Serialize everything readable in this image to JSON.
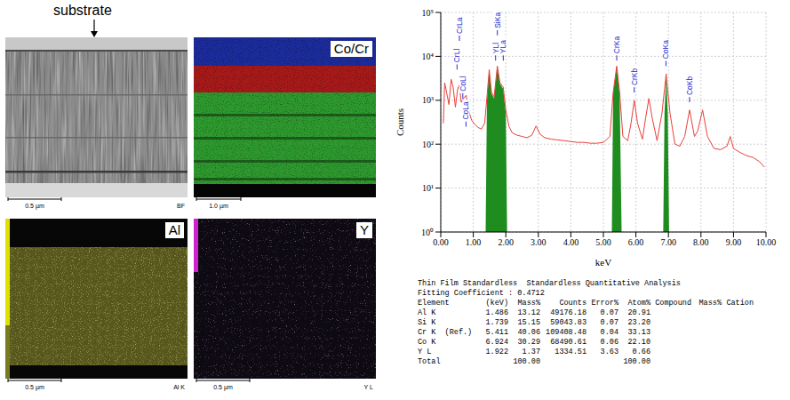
{
  "images": [
    {
      "annotation": "substrate",
      "scale_bar": "0.5 µm",
      "caption": "BF"
    },
    {
      "label": "Co/Cr",
      "scale_bar": "1.0 µm"
    },
    {
      "label": "Al",
      "scale_bar": "0.5 µm",
      "caption": "Al K"
    },
    {
      "label": "Y",
      "scale_bar": "0.5 µm",
      "caption": "Y L"
    }
  ],
  "chart_data": {
    "type": "line",
    "x_label": "keV",
    "y_label": "Counts",
    "log": "y",
    "grid": true,
    "xlim": [
      0,
      10
    ],
    "xticks": [
      {
        "value": 0,
        "label": "0.00"
      },
      {
        "value": 1,
        "label": "1.00"
      },
      {
        "value": 2,
        "label": "2.00"
      },
      {
        "value": 3,
        "label": "3.00"
      },
      {
        "value": 4,
        "label": "4.00"
      },
      {
        "value": 5,
        "label": "5.00"
      },
      {
        "value": 6,
        "label": "6.00"
      },
      {
        "value": 7,
        "label": "7.00"
      },
      {
        "value": 8,
        "label": "8.00"
      },
      {
        "value": 9,
        "label": "9.00"
      },
      {
        "value": 10,
        "label": "10.00"
      }
    ],
    "ylim": [
      1,
      100000
    ],
    "yticks": [
      {
        "value": 1,
        "label": "10⁰"
      },
      {
        "value": 10,
        "label": "10¹"
      },
      {
        "value": 100,
        "label": "10²"
      },
      {
        "value": 1000,
        "label": "10³"
      },
      {
        "value": 10000,
        "label": "10⁴"
      },
      {
        "value": 100000,
        "label": "10⁵"
      }
    ],
    "x": [
      0.08,
      0.12,
      0.18,
      0.25,
      0.32,
      0.38,
      0.45,
      0.52,
      0.57,
      0.63,
      0.7,
      0.78,
      0.85,
      0.95,
      1.05,
      1.15,
      1.25,
      1.35,
      1.42,
      1.49,
      1.56,
      1.64,
      1.74,
      1.82,
      1.92,
      2.0,
      2.1,
      2.2,
      2.35,
      2.5,
      2.65,
      2.8,
      2.93,
      3.05,
      3.2,
      3.4,
      3.6,
      3.8,
      4.0,
      4.2,
      4.4,
      4.6,
      4.8,
      5.0,
      5.2,
      5.3,
      5.41,
      5.5,
      5.6,
      5.75,
      5.85,
      5.95,
      6.05,
      6.2,
      6.3,
      6.4,
      6.5,
      6.65,
      6.8,
      6.93,
      7.05,
      7.2,
      7.35,
      7.5,
      7.65,
      7.8,
      7.9,
      8.05,
      8.2,
      8.4,
      8.6,
      8.8,
      8.9,
      9.0,
      9.2,
      9.4,
      9.6,
      9.8,
      9.95
    ],
    "series": [
      {
        "type": "line",
        "color": "#e8403a",
        "values": [
          300,
          2500,
          1500,
          800,
          3000,
          2000,
          700,
          1800,
          2200,
          900,
          1100,
          1300,
          600,
          350,
          280,
          240,
          220,
          300,
          1200,
          5000,
          1500,
          1200,
          6000,
          2500,
          2000,
          600,
          250,
          180,
          160,
          150,
          140,
          160,
          260,
          170,
          140,
          130,
          125,
          120,
          115,
          110,
          110,
          105,
          105,
          110,
          150,
          1500,
          6000,
          1500,
          150,
          120,
          300,
          1000,
          300,
          130,
          400,
          1100,
          400,
          120,
          500,
          4000,
          500,
          100,
          90,
          150,
          600,
          150,
          200,
          600,
          150,
          80,
          75,
          90,
          150,
          80,
          65,
          55,
          50,
          40,
          30
        ]
      },
      {
        "type": "area",
        "color": "#1e8c1e",
        "x": [
          1.38,
          1.42,
          1.49,
          1.56,
          1.64,
          1.74,
          1.82,
          1.92,
          2.0,
          2.04,
          5.26,
          5.3,
          5.41,
          5.5,
          5.56,
          6.84,
          6.88,
          6.93,
          6.98,
          7.02
        ],
        "values": [
          1,
          1000,
          4800,
          1400,
          1100,
          5800,
          2400,
          1800,
          500,
          1,
          1,
          1400,
          5800,
          1400,
          1,
          1,
          500,
          3800,
          500,
          1
        ]
      }
    ],
    "annotations": [
      {
        "text": "CrLl",
        "x": 0.5,
        "y": 5000
      },
      {
        "text": "CrLa",
        "x": 0.573,
        "y": 22500
      },
      {
        "text": "CoLl",
        "x": 0.678,
        "y": 1100
      },
      {
        "text": "CoLa",
        "x": 0.776,
        "y": 250
      },
      {
        "text": "YLl",
        "x": 1.686,
        "y": 8000
      },
      {
        "text": "SiKa",
        "x": 1.74,
        "y": 30000
      },
      {
        "text": "YLa",
        "x": 1.922,
        "y": 8000
      },
      {
        "text": "CrKa",
        "x": 5.411,
        "y": 8000
      },
      {
        "text": "CrKb",
        "x": 5.947,
        "y": 1500
      },
      {
        "text": "CoKa",
        "x": 6.924,
        "y": 6000
      },
      {
        "text": "CoKb",
        "x": 7.649,
        "y": 900
      }
    ]
  },
  "table": {
    "title": "Thin Film Standardless  Standardless Quantitative Analysis",
    "fitting_coefficient": "Fitting Coefficient : 0.4712",
    "columns": [
      "Element",
      "(keV)",
      "Mass%",
      "Counts",
      "Error%",
      "Atom%",
      "Compound",
      "Mass%",
      "Cation"
    ],
    "rows": [
      [
        "Al K",
        "1.486",
        "13.12",
        "49176.18",
        "0.07",
        "20.91"
      ],
      [
        "Si K",
        "1.739",
        "15.15",
        "59043.83",
        "0.07",
        "23.20"
      ],
      [
        "Cr K  (Ref.)",
        "5.411",
        "40.06",
        "109408.48",
        "0.04",
        "33.13"
      ],
      [
        "Co K",
        "6.924",
        "30.29",
        "68490.61",
        "0.06",
        "22.10"
      ],
      [
        "Y L",
        "1.922",
        "1.37",
        "1334.51",
        "3.63",
        "0.66"
      ]
    ],
    "total": {
      "label": "Total",
      "mass": "100.00",
      "atom": "100.00"
    }
  }
}
